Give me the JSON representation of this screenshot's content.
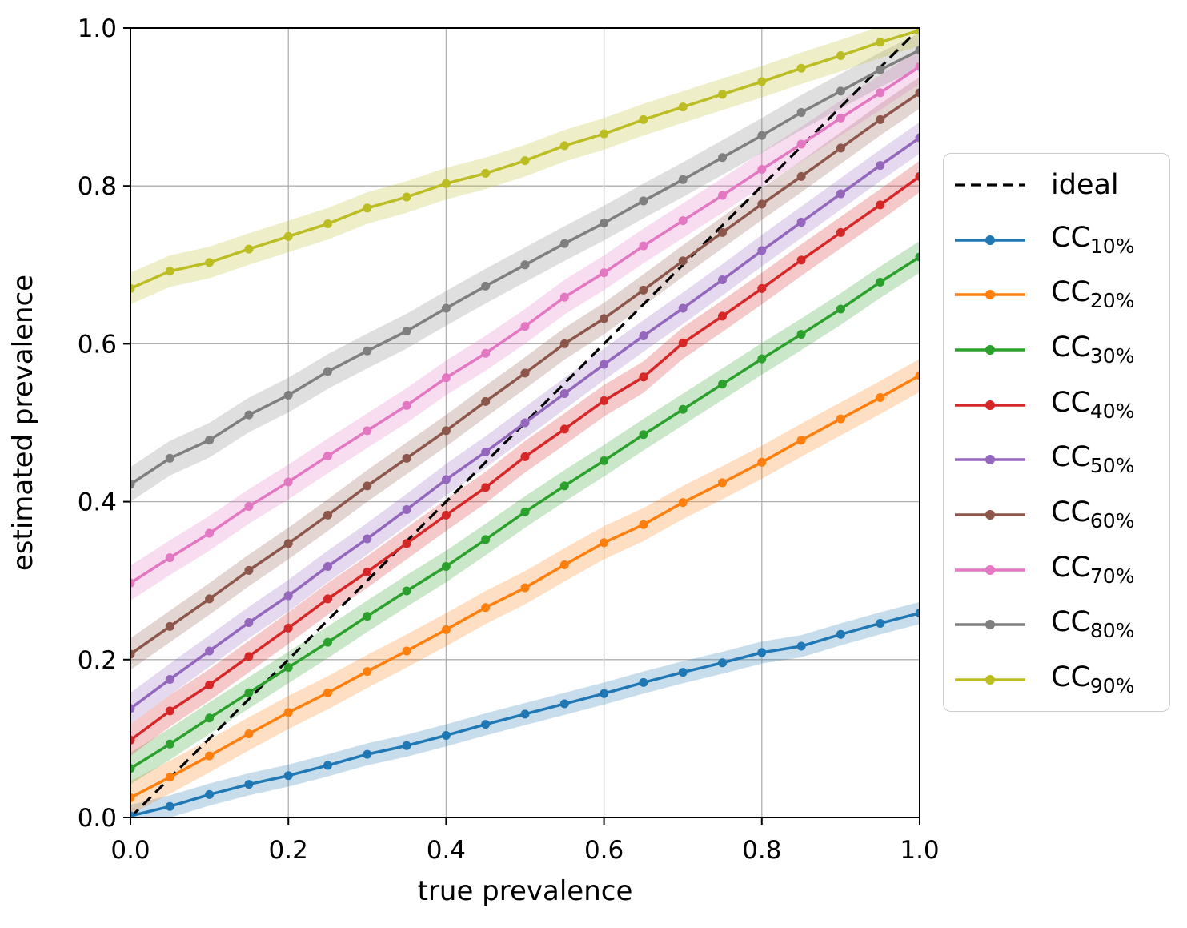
{
  "figure": {
    "background": "#ffffff",
    "text_color": "#000000",
    "grid_color": "#b0b0b0",
    "spine_color": "#000000",
    "legend_border_color": "#cccccc"
  },
  "chart_data": {
    "type": "line",
    "title": "",
    "xlabel": "true prevalence",
    "ylabel": "estimated prevalence",
    "xlim": [
      0.0,
      1.0
    ],
    "ylim": [
      0.0,
      1.0
    ],
    "grid": true,
    "legend_position": "right-outside",
    "x_ticks": [
      "0.0",
      "0.2",
      "0.4",
      "0.6",
      "0.8",
      "1.0"
    ],
    "y_ticks": [
      "0.0",
      "0.2",
      "0.4",
      "0.6",
      "0.8",
      "1.0"
    ],
    "x": [
      0.0,
      0.05,
      0.1,
      0.15,
      0.2,
      0.25,
      0.3,
      0.35,
      0.4,
      0.45,
      0.5,
      0.55,
      0.6,
      0.65,
      0.7,
      0.75,
      0.8,
      0.85,
      0.9,
      0.95,
      1.0
    ],
    "ideal": {
      "id": "ideal",
      "label": "ideal",
      "color": "#000000",
      "style": "dashed",
      "x": [
        0.0,
        1.0
      ],
      "y": [
        0.0,
        1.0
      ]
    },
    "series": [
      {
        "id": "cc10",
        "base": "CC",
        "sub": "10%",
        "name": "CC_10%",
        "color": "#1f77b4",
        "band_halfwidth": 0.014,
        "values": [
          0.002,
          0.014,
          0.029,
          0.042,
          0.053,
          0.066,
          0.08,
          0.091,
          0.104,
          0.118,
          0.131,
          0.144,
          0.157,
          0.171,
          0.184,
          0.196,
          0.209,
          0.217,
          0.232,
          0.246,
          0.259
        ]
      },
      {
        "id": "cc20",
        "base": "CC",
        "sub": "20%",
        "name": "CC_20%",
        "color": "#ff7f0e",
        "band_halfwidth": 0.021,
        "values": [
          0.025,
          0.051,
          0.078,
          0.106,
          0.133,
          0.158,
          0.185,
          0.211,
          0.238,
          0.266,
          0.291,
          0.32,
          0.348,
          0.371,
          0.399,
          0.424,
          0.45,
          0.478,
          0.505,
          0.532,
          0.56
        ]
      },
      {
        "id": "cc30",
        "base": "CC",
        "sub": "30%",
        "name": "CC_30%",
        "color": "#2ca02c",
        "band_halfwidth": 0.02,
        "values": [
          0.062,
          0.093,
          0.126,
          0.158,
          0.19,
          0.222,
          0.255,
          0.287,
          0.318,
          0.352,
          0.387,
          0.42,
          0.452,
          0.485,
          0.517,
          0.549,
          0.581,
          0.612,
          0.644,
          0.678,
          0.71
        ]
      },
      {
        "id": "cc40",
        "base": "CC",
        "sub": "40%",
        "name": "CC_40%",
        "color": "#d62728",
        "band_halfwidth": 0.02,
        "values": [
          0.098,
          0.135,
          0.168,
          0.204,
          0.24,
          0.277,
          0.311,
          0.347,
          0.383,
          0.418,
          0.457,
          0.492,
          0.528,
          0.558,
          0.601,
          0.635,
          0.67,
          0.706,
          0.741,
          0.776,
          0.812
        ]
      },
      {
        "id": "cc50",
        "base": "CC",
        "sub": "50%",
        "name": "CC_50%",
        "color": "#9467bd",
        "band_halfwidth": 0.02,
        "values": [
          0.138,
          0.175,
          0.211,
          0.247,
          0.281,
          0.318,
          0.353,
          0.39,
          0.428,
          0.463,
          0.5,
          0.537,
          0.574,
          0.61,
          0.645,
          0.681,
          0.718,
          0.754,
          0.79,
          0.826,
          0.861
        ]
      },
      {
        "id": "cc60",
        "base": "CC",
        "sub": "60%",
        "name": "CC_60%",
        "color": "#8c564b",
        "band_halfwidth": 0.02,
        "values": [
          0.207,
          0.242,
          0.277,
          0.313,
          0.347,
          0.383,
          0.42,
          0.455,
          0.49,
          0.527,
          0.563,
          0.6,
          0.632,
          0.668,
          0.705,
          0.741,
          0.777,
          0.812,
          0.848,
          0.884,
          0.918
        ]
      },
      {
        "id": "cc70",
        "base": "CC",
        "sub": "70%",
        "name": "CC_70%",
        "color": "#e377c2",
        "band_halfwidth": 0.022,
        "values": [
          0.297,
          0.329,
          0.36,
          0.394,
          0.425,
          0.458,
          0.49,
          0.522,
          0.557,
          0.588,
          0.622,
          0.659,
          0.69,
          0.724,
          0.756,
          0.788,
          0.821,
          0.853,
          0.886,
          0.918,
          0.951
        ]
      },
      {
        "id": "cc80",
        "base": "CC",
        "sub": "80%",
        "name": "CC_80%",
        "color": "#7f7f7f",
        "band_halfwidth": 0.022,
        "values": [
          0.422,
          0.455,
          0.478,
          0.51,
          0.535,
          0.565,
          0.591,
          0.616,
          0.645,
          0.673,
          0.7,
          0.727,
          0.753,
          0.781,
          0.808,
          0.836,
          0.864,
          0.893,
          0.92,
          0.947,
          0.972
        ]
      },
      {
        "id": "cc90",
        "base": "CC",
        "sub": "90%",
        "name": "CC_90%",
        "color": "#bcbd22",
        "band_halfwidth": 0.02,
        "values": [
          0.67,
          0.692,
          0.703,
          0.72,
          0.736,
          0.752,
          0.772,
          0.786,
          0.803,
          0.816,
          0.832,
          0.851,
          0.866,
          0.884,
          0.9,
          0.916,
          0.932,
          0.949,
          0.965,
          0.982,
          0.997
        ]
      }
    ]
  }
}
